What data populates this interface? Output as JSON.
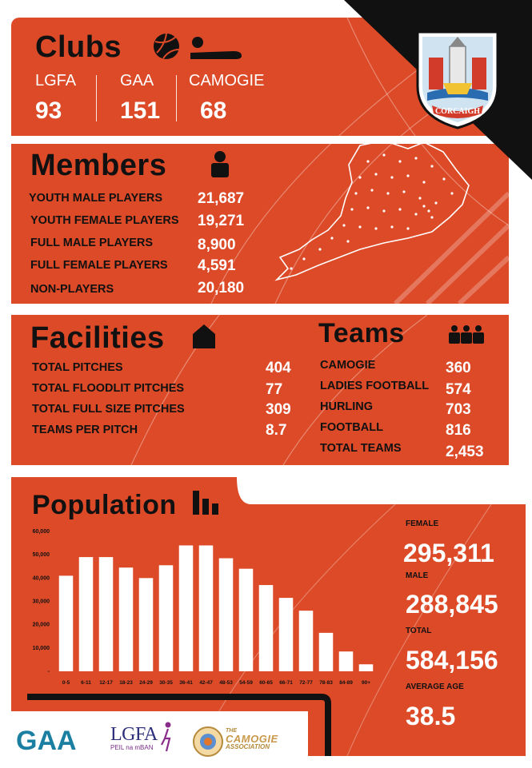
{
  "clubs": {
    "title": "Clubs",
    "items": [
      {
        "name": "LGFA",
        "value": "93"
      },
      {
        "name": "GAA",
        "value": "151"
      },
      {
        "name": "CAMOGIE",
        "value": "68"
      }
    ]
  },
  "crest": {
    "text": "CORCAIGH"
  },
  "members": {
    "title": "Members",
    "rows": [
      {
        "label": "YOUTH MALE PLAYERS",
        "value": "21,687"
      },
      {
        "label": "YOUTH FEMALE PLAYERS",
        "value": "19,271"
      },
      {
        "label": "FULL MALE PLAYERS",
        "value": "8,900"
      },
      {
        "label": "FULL FEMALE PLAYERS",
        "value": "4,591"
      },
      {
        "label": "NON-PLAYERS",
        "value": "20,180"
      }
    ]
  },
  "facilities": {
    "title": "Facilities",
    "rows": [
      {
        "label": "TOTAL PITCHES",
        "value": "404"
      },
      {
        "label": "TOTAL FLOODLIT PITCHES",
        "value": "77"
      },
      {
        "label": "TOTAL FULL SIZE PITCHES",
        "value": "309"
      },
      {
        "label": "TEAMS PER PITCH",
        "value": "8.7"
      }
    ]
  },
  "teams": {
    "title": "Teams",
    "rows": [
      {
        "label": "CAMOGIE",
        "value": "360"
      },
      {
        "label": "LADIES FOOTBALL",
        "value": "574"
      },
      {
        "label": "HURLING",
        "value": "703"
      },
      {
        "label": "FOOTBALL",
        "value": "816"
      },
      {
        "label": "TOTAL TEAMS",
        "value": "2,453"
      }
    ]
  },
  "population": {
    "title": "Population",
    "female_label": "FEMALE",
    "female_value": "295,311",
    "male_label": "MALE",
    "male_value": "288,845",
    "total_label": "TOTAL",
    "total_value": "584,156",
    "age_label": "AVERAGE AGE",
    "age_value": "38.5"
  },
  "chart_data": {
    "type": "bar",
    "title": "",
    "xlabel": "",
    "ylabel": "",
    "categories": [
      "0-5",
      "6-11",
      "12-17",
      "18-23",
      "24-29",
      "30-35",
      "36-41",
      "42-47",
      "48-53",
      "54-59",
      "60-65",
      "66-71",
      "72-77",
      "78-83",
      "84-89",
      "90+"
    ],
    "values": [
      41000,
      49000,
      49000,
      44500,
      40000,
      45500,
      54000,
      54000,
      48500,
      44000,
      37000,
      31500,
      26000,
      16500,
      8500,
      3000
    ],
    "ylim": [
      0,
      60000
    ],
    "yticks": [
      "-",
      "10,000",
      "20,000",
      "30,000",
      "40,000",
      "50,000",
      "60,000"
    ],
    "grid": false,
    "color": "#ffffff"
  },
  "footer": {
    "gaa": "GAA",
    "lgfa": "LGFA",
    "lgfa_sub": "PEIL na mBAN",
    "camogie_line1": "THE",
    "camogie_line2": "CAMOGIE",
    "camogie_line3": "ASSOCIATION"
  },
  "colors": {
    "panel": "#dc4a28",
    "dark": "#111111",
    "text": "#ffffff"
  }
}
